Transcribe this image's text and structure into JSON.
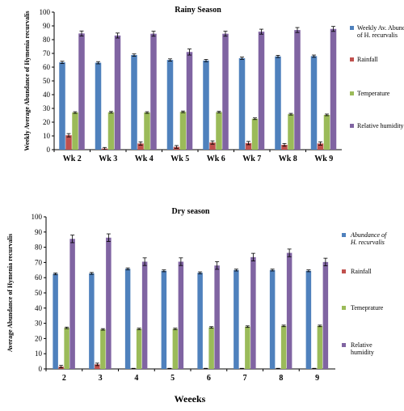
{
  "chart_data": [
    {
      "type": "bar",
      "title": "Rainy Season",
      "xlabel": "",
      "ylabel": "Weekly Average Abundance of Hymenia recurvalis",
      "ylim": [
        0,
        100
      ],
      "yticks": [
        0,
        10,
        20,
        30,
        40,
        50,
        60,
        70,
        80,
        90,
        100
      ],
      "grid": false,
      "error_bars": true,
      "legend_position": "right",
      "categories": [
        "Wk 2",
        "Wk 3",
        "Wk 4",
        "Wk 5",
        "Wk 6",
        "Wk 7",
        "Wk 8",
        "Wk 9"
      ],
      "series": [
        {
          "name": "Weekly Av. Abundance of H. recurvalis",
          "color": "#4F81BD",
          "values": [
            63.5,
            63.2,
            68.8,
            65.2,
            64.8,
            66.5,
            67.8,
            68.0
          ],
          "errors": [
            0.8,
            0.8,
            0.8,
            0.8,
            0.8,
            0.8,
            0.8,
            0.8
          ]
        },
        {
          "name": "Rainfall",
          "color": "#C0504D",
          "values": [
            10.5,
            0.8,
            4.5,
            2.0,
            5.2,
            4.8,
            3.5,
            4.5
          ],
          "errors": [
            1.2,
            0.8,
            1.2,
            1.0,
            1.2,
            1.2,
            1.0,
            1.2
          ]
        },
        {
          "name": "Temperature",
          "color": "#9BBB59",
          "values": [
            27.0,
            27.2,
            27.0,
            27.5,
            27.3,
            22.5,
            25.8,
            25.3
          ],
          "errors": [
            0.6,
            0.6,
            0.6,
            0.6,
            0.6,
            0.6,
            0.6,
            0.6
          ]
        },
        {
          "name": "Relative humidity",
          "color": "#8064A2",
          "values": [
            84.5,
            83.0,
            84.3,
            71.0,
            84.3,
            85.8,
            87.0,
            87.8
          ],
          "errors": [
            1.8,
            1.8,
            1.8,
            2.2,
            1.8,
            1.8,
            1.8,
            1.8
          ]
        }
      ]
    },
    {
      "type": "bar",
      "title": "Dry season",
      "xlabel": "Weeeks",
      "ylabel": "Average Abundance of Hymenia recurvalis",
      "ylim": [
        0,
        100
      ],
      "yticks": [
        0,
        10,
        20,
        30,
        40,
        50,
        60,
        70,
        80,
        90,
        100
      ],
      "grid": false,
      "error_bars": true,
      "legend_position": "right",
      "categories": [
        "2",
        "3",
        "4",
        "5",
        "6",
        "7",
        "8",
        "9"
      ],
      "series": [
        {
          "name": "Abundance of H. recurvalis",
          "color": "#4F81BD",
          "values": [
            62.5,
            62.8,
            65.8,
            64.5,
            63.2,
            65.0,
            65.0,
            64.5
          ],
          "errors": [
            0.6,
            0.6,
            0.6,
            0.6,
            0.6,
            0.6,
            0.6,
            0.6
          ]
        },
        {
          "name": "Rainfall",
          "color": "#C0504D",
          "values": [
            1.5,
            3.0,
            0.1,
            0.1,
            0.1,
            0.1,
            0.1,
            0.1
          ],
          "errors": [
            0.8,
            0.8,
            0.3,
            0.3,
            0.3,
            0.3,
            0.3,
            0.3
          ]
        },
        {
          "name": "Temeprature",
          "color": "#9BBB59",
          "values": [
            27.0,
            26.0,
            26.3,
            26.3,
            27.3,
            27.8,
            28.3,
            28.3
          ],
          "errors": [
            0.5,
            0.5,
            0.5,
            0.5,
            0.5,
            0.5,
            0.5,
            0.5
          ]
        },
        {
          "name": "Relative humidity",
          "color": "#8064A2",
          "values": [
            85.5,
            86.3,
            70.5,
            70.5,
            68.0,
            73.5,
            76.3,
            70.3
          ],
          "errors": [
            2.5,
            2.5,
            2.5,
            2.5,
            2.5,
            2.5,
            2.5,
            2.5
          ]
        }
      ]
    }
  ]
}
